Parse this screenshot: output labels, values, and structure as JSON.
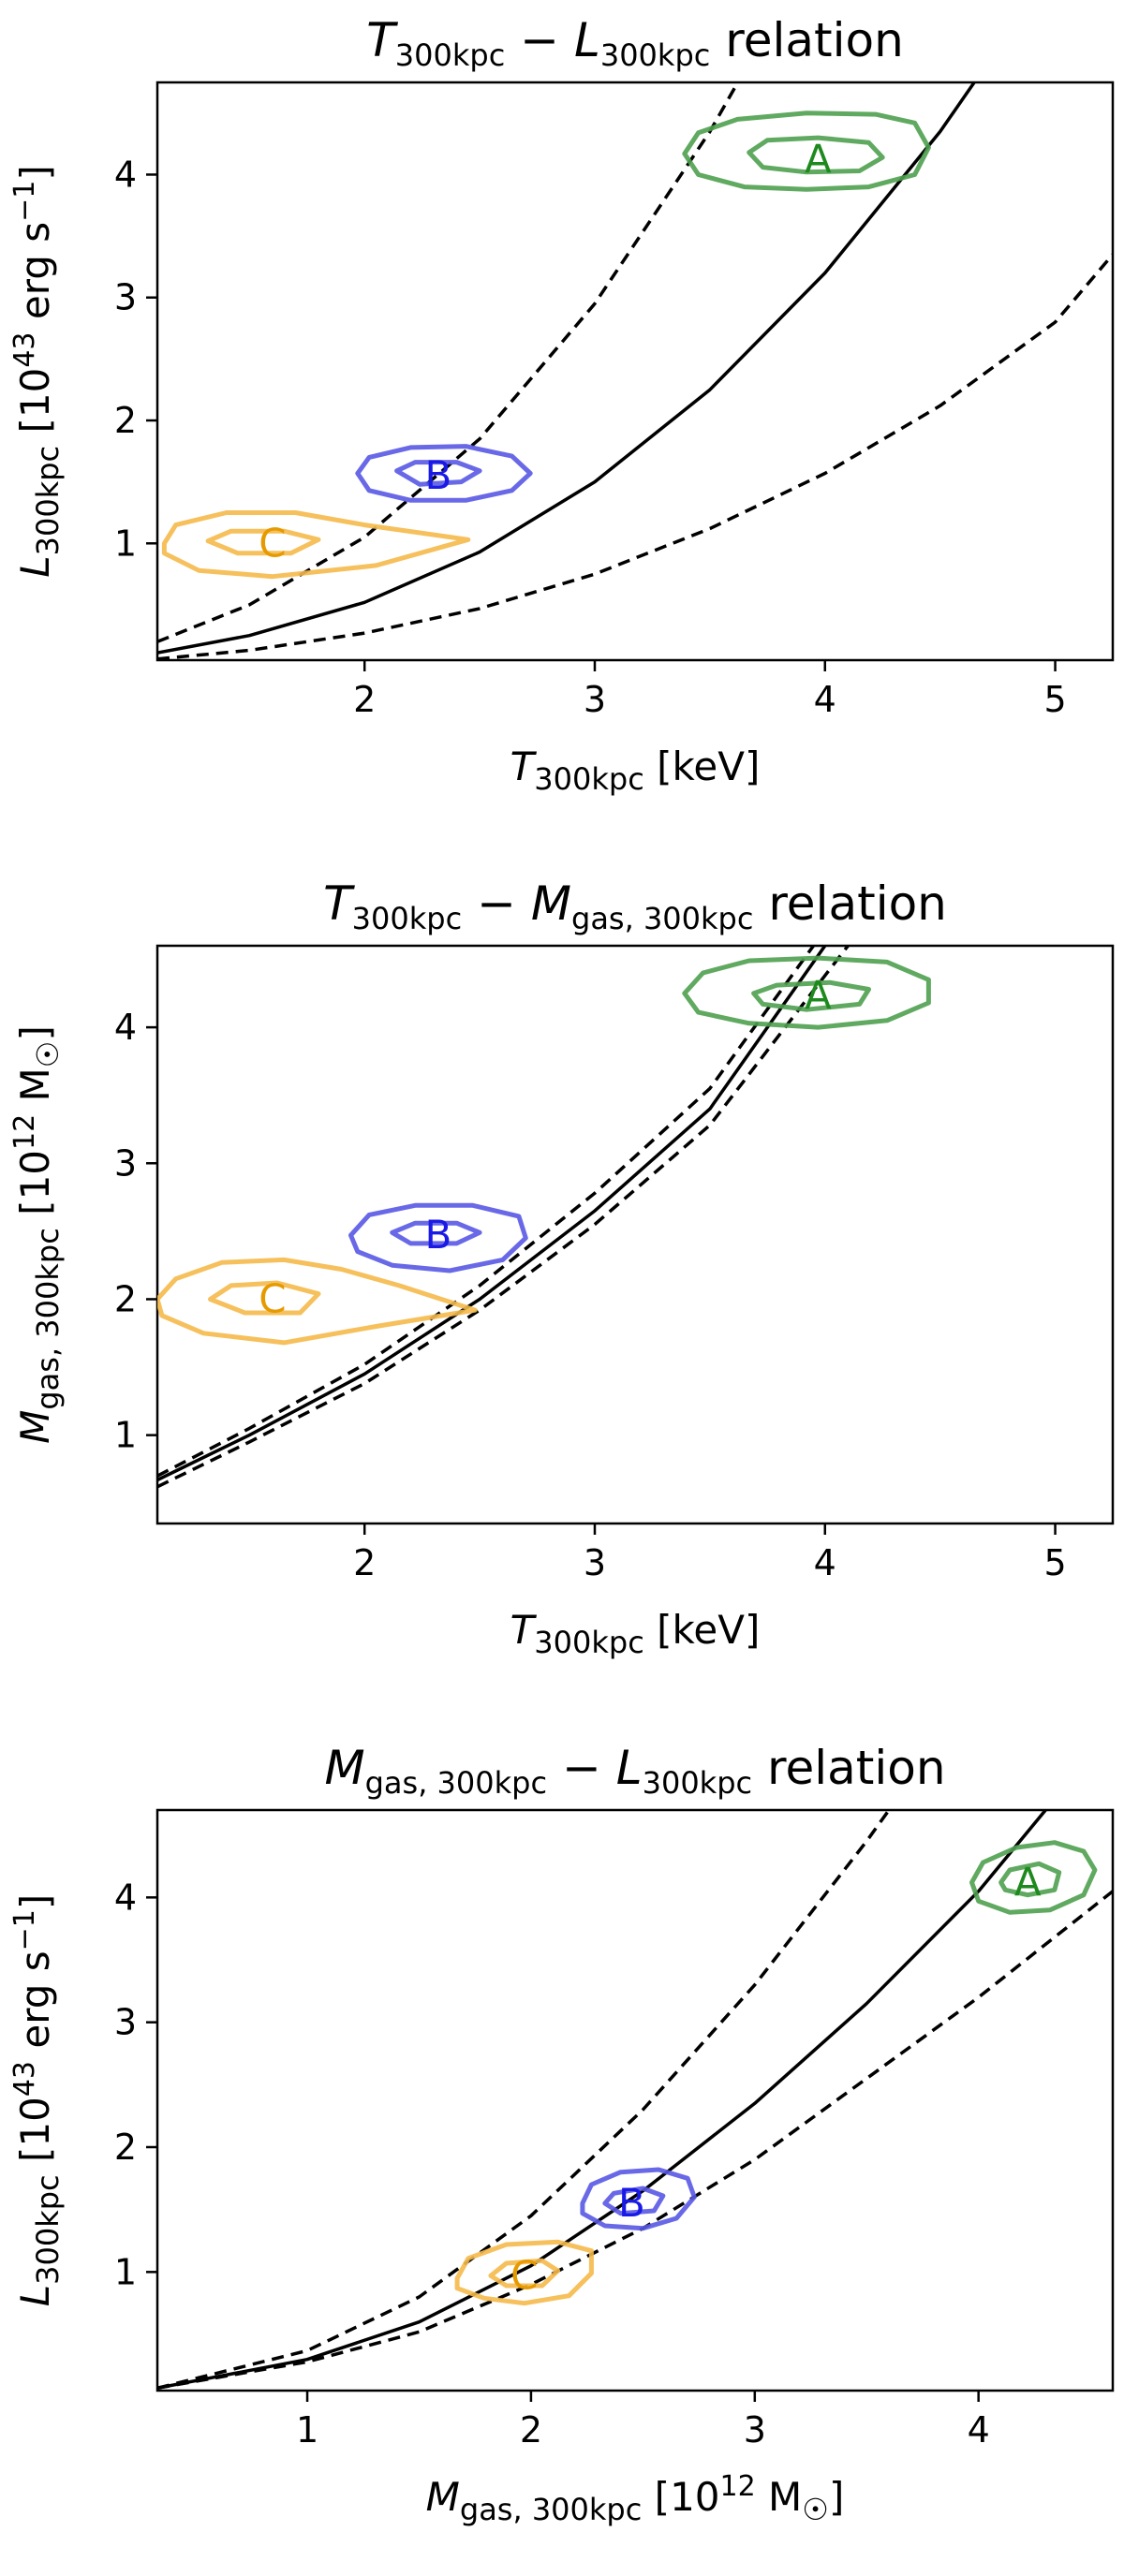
{
  "chart_data": [
    {
      "type": "line",
      "title": {
        "prefix": "T",
        "prefix_sub": "300kpc",
        "mid": " − ",
        "var2": "L",
        "var2_sub": "300kpc",
        "suffix": "  relation"
      },
      "xlabel": {
        "var": "T",
        "sub": "300kpc",
        "unit": " [keV]"
      },
      "ylabel": {
        "var": "L",
        "sub": "300kpc",
        "unit_pre": "  [10",
        "unit_exp": "43",
        "unit_post": " erg s",
        "unit_exp2": "−1",
        "unit_end": "]"
      },
      "xlim": [
        1.1,
        5.25
      ],
      "ylim": [
        0.05,
        4.75
      ],
      "xticks": [
        "2",
        "3",
        "4",
        "5"
      ],
      "yticks": [
        "1",
        "2",
        "3",
        "4"
      ],
      "series": [
        {
          "style": "solid",
          "x": [
            1.1,
            1.5,
            2.0,
            2.5,
            3.0,
            3.5,
            4.0,
            4.5,
            5.0
          ],
          "y": [
            0.11,
            0.25,
            0.52,
            0.93,
            1.5,
            2.25,
            3.2,
            4.35,
            5.7
          ]
        },
        {
          "style": "dashed",
          "x": [
            1.1,
            1.5,
            2.0,
            2.5,
            3.0,
            3.5,
            4.0
          ],
          "y": [
            0.2,
            0.5,
            1.05,
            1.85,
            2.95,
            4.35,
            6.0
          ]
        },
        {
          "style": "dashed",
          "x": [
            1.1,
            1.5,
            2.0,
            2.5,
            3.0,
            3.5,
            4.0,
            4.5,
            5.0,
            5.25
          ],
          "y": [
            0.06,
            0.13,
            0.27,
            0.47,
            0.75,
            1.12,
            1.57,
            2.12,
            2.8,
            3.35
          ]
        }
      ],
      "clusters": [
        {
          "label": "A",
          "color": "#4fa04f",
          "text_color": "#1e8a1e",
          "x": 3.97,
          "y": 4.12,
          "outer": [
            [
              -0.58,
              0.05
            ],
            [
              -0.52,
              0.22
            ],
            [
              -0.35,
              0.33
            ],
            [
              -0.05,
              0.38
            ],
            [
              0.25,
              0.37
            ],
            [
              0.42,
              0.3
            ],
            [
              0.48,
              0.1
            ],
            [
              0.42,
              -0.12
            ],
            [
              0.22,
              -0.22
            ],
            [
              -0.05,
              -0.24
            ],
            [
              -0.32,
              -0.22
            ],
            [
              -0.52,
              -0.12
            ]
          ],
          "inner": [
            [
              -0.3,
              0.06
            ],
            [
              -0.22,
              0.16
            ],
            [
              0.0,
              0.18
            ],
            [
              0.22,
              0.14
            ],
            [
              0.28,
              0.02
            ],
            [
              0.18,
              -0.09
            ],
            [
              -0.05,
              -0.1
            ],
            [
              -0.24,
              -0.06
            ]
          ]
        },
        {
          "label": "B",
          "color": "#5959e6",
          "text_color": "#1a1ae6",
          "x": 2.32,
          "y": 1.55,
          "outer": [
            [
              -0.35,
              0.02
            ],
            [
              -0.3,
              0.15
            ],
            [
              -0.12,
              0.23
            ],
            [
              0.12,
              0.24
            ],
            [
              0.32,
              0.16
            ],
            [
              0.4,
              0.02
            ],
            [
              0.32,
              -0.12
            ],
            [
              0.12,
              -0.2
            ],
            [
              -0.12,
              -0.2
            ],
            [
              -0.3,
              -0.12
            ]
          ],
          "inner": [
            [
              -0.18,
              0.04
            ],
            [
              -0.1,
              0.11
            ],
            [
              0.08,
              0.11
            ],
            [
              0.18,
              0.04
            ],
            [
              0.1,
              -0.05
            ],
            [
              -0.08,
              -0.07
            ]
          ]
        },
        {
          "label": "C",
          "color": "#f5b94a",
          "text_color": "#e69a00",
          "x": 1.6,
          "y": 1.0,
          "outer": [
            [
              -0.47,
              0.0
            ],
            [
              -0.42,
              0.15
            ],
            [
              -0.2,
              0.25
            ],
            [
              0.1,
              0.25
            ],
            [
              0.4,
              0.15
            ],
            [
              0.85,
              0.03
            ],
            [
              0.45,
              -0.18
            ],
            [
              0.0,
              -0.27
            ],
            [
              -0.32,
              -0.22
            ],
            [
              -0.47,
              -0.08
            ]
          ],
          "inner": [
            [
              -0.28,
              0.02
            ],
            [
              -0.18,
              0.1
            ],
            [
              0.05,
              0.1
            ],
            [
              0.2,
              0.03
            ],
            [
              0.08,
              -0.08
            ],
            [
              -0.15,
              -0.08
            ]
          ]
        }
      ]
    },
    {
      "type": "line",
      "title": {
        "prefix": "T",
        "prefix_sub": "300kpc",
        "mid": " − ",
        "var2": "M",
        "var2_sub": "gas, 300kpc",
        "suffix": " relation"
      },
      "xlabel": {
        "var": "T",
        "sub": "300kpc",
        "unit": " [keV]"
      },
      "ylabel": {
        "var": "M",
        "sub": "gas, 300kpc",
        "unit_pre": " [10",
        "unit_exp": "12",
        "unit_post": " M",
        "unit_exp2": "",
        "unit_end": "]",
        "sun_sub": "☉"
      },
      "xlim": [
        1.1,
        5.25
      ],
      "ylim": [
        0.35,
        4.6
      ],
      "xticks": [
        "2",
        "3",
        "4",
        "5"
      ],
      "yticks": [
        "1",
        "2",
        "3",
        "4"
      ],
      "series": [
        {
          "style": "solid",
          "x": [
            1.1,
            1.5,
            2.0,
            2.5,
            3.0,
            3.5,
            4.0
          ],
          "y": [
            0.67,
            1.0,
            1.45,
            2.0,
            2.65,
            3.4,
            4.6
          ]
        },
        {
          "style": "dashed",
          "x": [
            1.1,
            1.5,
            2.0,
            2.5,
            3.0,
            3.5,
            3.95
          ],
          "y": [
            0.7,
            1.05,
            1.52,
            2.1,
            2.78,
            3.55,
            4.6
          ]
        },
        {
          "style": "dashed",
          "x": [
            1.1,
            1.5,
            2.0,
            2.5,
            3.0,
            3.5,
            4.1
          ],
          "y": [
            0.62,
            0.95,
            1.38,
            1.92,
            2.55,
            3.28,
            4.6
          ]
        }
      ],
      "clusters": [
        {
          "label": "A",
          "color": "#4fa04f",
          "text_color": "#1e8a1e",
          "x": 3.97,
          "y": 4.23,
          "outer": [
            [
              -0.58,
              0.02
            ],
            [
              -0.5,
              0.17
            ],
            [
              -0.3,
              0.26
            ],
            [
              0.0,
              0.28
            ],
            [
              0.3,
              0.25
            ],
            [
              0.48,
              0.12
            ],
            [
              0.48,
              -0.05
            ],
            [
              0.3,
              -0.18
            ],
            [
              0.0,
              -0.23
            ],
            [
              -0.3,
              -0.2
            ],
            [
              -0.52,
              -0.12
            ]
          ],
          "inner": [
            [
              -0.28,
              0.02
            ],
            [
              -0.18,
              0.08
            ],
            [
              0.05,
              0.1
            ],
            [
              0.22,
              0.05
            ],
            [
              0.18,
              -0.06
            ],
            [
              -0.05,
              -0.1
            ],
            [
              -0.24,
              -0.06
            ]
          ]
        },
        {
          "label": "B",
          "color": "#5959e6",
          "text_color": "#1a1ae6",
          "x": 2.32,
          "y": 2.47,
          "outer": [
            [
              -0.38,
              0.0
            ],
            [
              -0.3,
              0.15
            ],
            [
              -0.1,
              0.22
            ],
            [
              0.15,
              0.22
            ],
            [
              0.35,
              0.14
            ],
            [
              0.38,
              -0.02
            ],
            [
              0.28,
              -0.18
            ],
            [
              0.05,
              -0.26
            ],
            [
              -0.2,
              -0.22
            ],
            [
              -0.35,
              -0.12
            ]
          ],
          "inner": [
            [
              -0.2,
              0.02
            ],
            [
              -0.1,
              0.09
            ],
            [
              0.08,
              0.09
            ],
            [
              0.18,
              0.02
            ],
            [
              0.08,
              -0.06
            ],
            [
              -0.12,
              -0.06
            ]
          ]
        },
        {
          "label": "C",
          "color": "#f5b94a",
          "text_color": "#e69a00",
          "x": 1.6,
          "y": 2.0,
          "outer": [
            [
              -0.5,
              0.0
            ],
            [
              -0.42,
              0.15
            ],
            [
              -0.22,
              0.27
            ],
            [
              0.05,
              0.29
            ],
            [
              0.3,
              0.22
            ],
            [
              0.55,
              0.1
            ],
            [
              0.88,
              -0.08
            ],
            [
              0.45,
              -0.2
            ],
            [
              0.05,
              -0.32
            ],
            [
              -0.3,
              -0.25
            ],
            [
              -0.48,
              -0.12
            ]
          ],
          "inner": [
            [
              -0.27,
              0.0
            ],
            [
              -0.18,
              0.1
            ],
            [
              0.02,
              0.12
            ],
            [
              0.2,
              0.04
            ],
            [
              0.12,
              -0.1
            ],
            [
              -0.12,
              -0.1
            ]
          ]
        }
      ]
    },
    {
      "type": "line",
      "title": {
        "prefix": "M",
        "prefix_sub": "gas, 300kpc",
        "mid": " − ",
        "var2": "L",
        "var2_sub": "300kpc",
        "suffix": " relation"
      },
      "xlabel": {
        "var": "M",
        "sub": "gas, 300kpc",
        "unit": " [10",
        "unit_exp": "12",
        "unit_post": " M",
        "sun_sub": "☉",
        "unit_end": "]"
      },
      "ylabel": {
        "var": "L",
        "sub": "300kpc",
        "unit_pre": " [10",
        "unit_exp": "43",
        "unit_post": " erg s",
        "unit_exp2": "−1",
        "unit_end": "]"
      },
      "xlim": [
        0.33,
        4.6
      ],
      "ylim": [
        0.05,
        4.7
      ],
      "xticks": [
        "1",
        "2",
        "3",
        "4"
      ],
      "yticks": [
        "1",
        "2",
        "3",
        "4"
      ],
      "series": [
        {
          "style": "solid",
          "x": [
            0.33,
            1.0,
            1.5,
            2.0,
            2.5,
            3.0,
            3.5,
            4.0,
            4.3
          ],
          "y": [
            0.07,
            0.3,
            0.6,
            1.05,
            1.65,
            2.35,
            3.15,
            4.05,
            4.7
          ]
        },
        {
          "style": "dashed",
          "x": [
            0.33,
            1.0,
            1.5,
            2.0,
            2.5,
            3.0,
            3.5,
            3.6
          ],
          "y": [
            0.07,
            0.37,
            0.8,
            1.45,
            2.3,
            3.3,
            4.45,
            4.7
          ]
        },
        {
          "style": "dashed",
          "x": [
            0.33,
            1.0,
            1.5,
            2.0,
            2.5,
            3.0,
            3.5,
            4.0,
            4.6
          ],
          "y": [
            0.07,
            0.28,
            0.52,
            0.9,
            1.35,
            1.9,
            2.55,
            3.2,
            4.05
          ]
        }
      ],
      "clusters": [
        {
          "label": "A",
          "color": "#4fa04f",
          "text_color": "#1e8a1e",
          "x": 4.22,
          "y": 4.12,
          "outer": [
            [
              -0.25,
              0.0
            ],
            [
              -0.2,
              0.16
            ],
            [
              -0.05,
              0.28
            ],
            [
              0.12,
              0.32
            ],
            [
              0.25,
              0.25
            ],
            [
              0.3,
              0.1
            ],
            [
              0.25,
              -0.1
            ],
            [
              0.1,
              -0.22
            ],
            [
              -0.08,
              -0.24
            ],
            [
              -0.22,
              -0.15
            ]
          ],
          "inner": [
            [
              -0.12,
              0.0
            ],
            [
              -0.08,
              0.1
            ],
            [
              0.05,
              0.15
            ],
            [
              0.14,
              0.08
            ],
            [
              0.12,
              -0.06
            ],
            [
              0.0,
              -0.1
            ],
            [
              -0.1,
              -0.06
            ]
          ]
        },
        {
          "label": "B",
          "color": "#5959e6",
          "text_color": "#1a1ae6",
          "x": 2.45,
          "y": 1.55,
          "outer": [
            [
              -0.22,
              0.0
            ],
            [
              -0.18,
              0.15
            ],
            [
              -0.05,
              0.25
            ],
            [
              0.12,
              0.27
            ],
            [
              0.25,
              0.2
            ],
            [
              0.28,
              0.05
            ],
            [
              0.2,
              -0.12
            ],
            [
              0.05,
              -0.2
            ],
            [
              -0.12,
              -0.18
            ],
            [
              -0.22,
              -0.08
            ]
          ],
          "inner": [
            [
              -0.12,
              0.0
            ],
            [
              -0.08,
              0.08
            ],
            [
              0.05,
              0.12
            ],
            [
              0.14,
              0.06
            ],
            [
              0.1,
              -0.06
            ],
            [
              -0.05,
              -0.08
            ]
          ]
        },
        {
          "label": "C",
          "color": "#f5b94a",
          "text_color": "#e69a00",
          "x": 1.97,
          "y": 0.97,
          "outer": [
            [
              -0.3,
              -0.02
            ],
            [
              -0.25,
              0.14
            ],
            [
              -0.08,
              0.25
            ],
            [
              0.15,
              0.27
            ],
            [
              0.3,
              0.2
            ],
            [
              0.3,
              0.02
            ],
            [
              0.2,
              -0.16
            ],
            [
              0.0,
              -0.22
            ],
            [
              -0.18,
              -0.18
            ],
            [
              -0.3,
              -0.1
            ]
          ],
          "inner": [
            [
              -0.15,
              0.0
            ],
            [
              -0.08,
              0.1
            ],
            [
              0.08,
              0.12
            ],
            [
              0.15,
              0.04
            ],
            [
              0.08,
              -0.08
            ],
            [
              -0.08,
              -0.08
            ]
          ]
        }
      ]
    }
  ]
}
